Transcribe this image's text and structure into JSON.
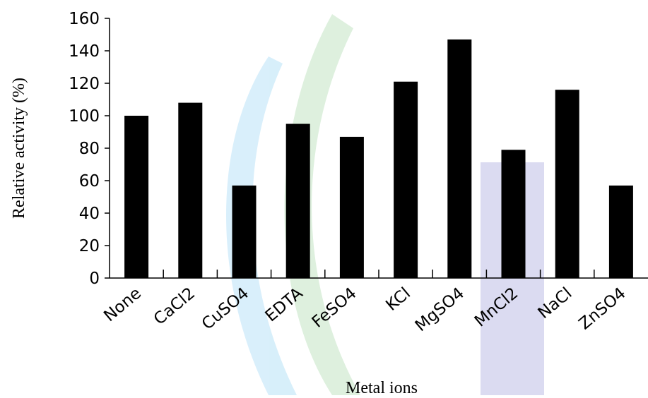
{
  "chart_data": {
    "type": "bar",
    "x_label": "Metal ions",
    "y_label": "Relative activity (%)",
    "categories": [
      "None",
      "CaCl2",
      "CuSO4",
      "EDTA",
      "FeSO4",
      "KCl",
      "MgSO4",
      "MnCl2",
      "NaCl",
      "ZnSO4"
    ],
    "values": [
      100,
      108,
      57,
      95,
      87,
      121,
      147,
      79,
      116,
      57
    ],
    "color": "#000000",
    "ylim": [
      0,
      160
    ],
    "yticks": [
      0,
      20,
      40,
      60,
      80,
      100,
      120,
      140,
      160
    ]
  }
}
